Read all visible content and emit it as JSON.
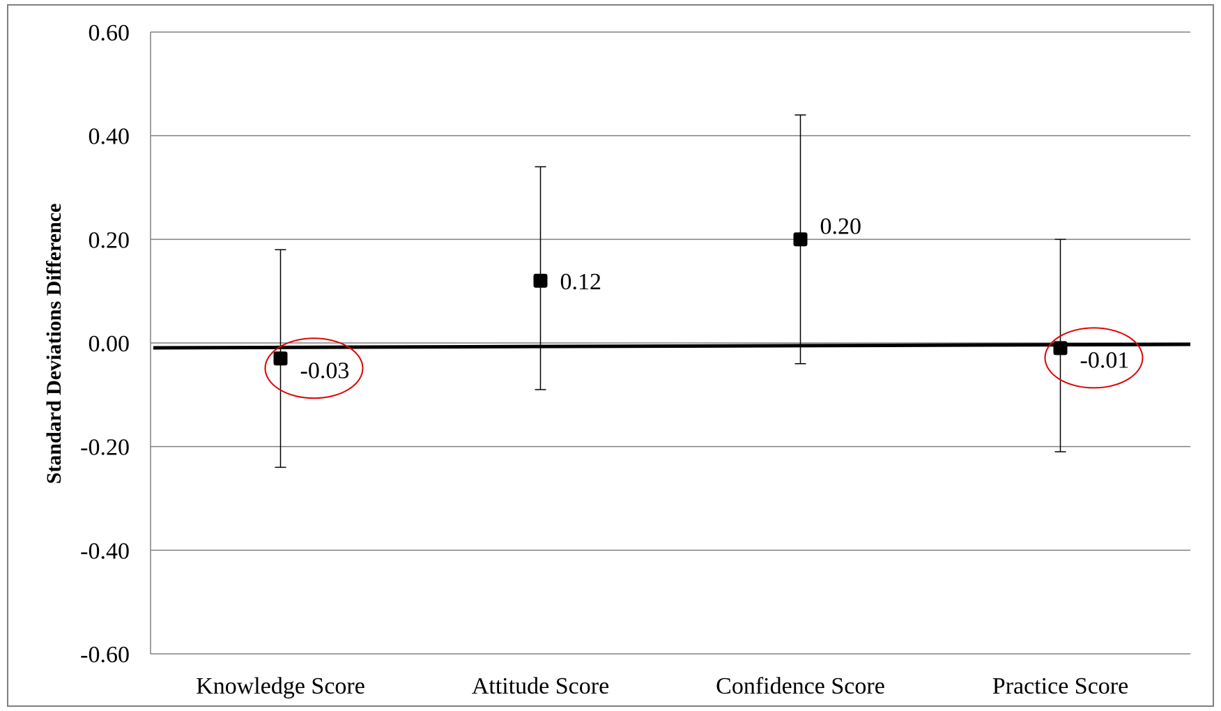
{
  "chart_data": {
    "type": "scatter",
    "title": "",
    "xlabel": "",
    "ylabel": "Standard Deviations Difference",
    "ylim": [
      -0.6,
      0.6
    ],
    "y_ticks": [
      "0.60",
      "0.40",
      "0.20",
      "0.00",
      "-0.20",
      "-0.40",
      "-0.60"
    ],
    "grid": "horizontal",
    "categories": [
      "Knowledge Score",
      "Attitude Score",
      "Confidence Score",
      "Practice Score"
    ],
    "values": [
      -0.03,
      0.12,
      0.2,
      -0.01
    ],
    "value_labels": [
      "-0.03",
      "0.12",
      "0.20",
      "-0.01"
    ],
    "error_upper": [
      0.18,
      0.34,
      0.44,
      0.2
    ],
    "error_lower": [
      -0.24,
      -0.09,
      -0.04,
      -0.21
    ],
    "highlighted": [
      "Knowledge Score",
      "Practice Score"
    ],
    "colors": {
      "marker": "#000000",
      "grid": "#808080",
      "zero_line": "#000000",
      "highlight": "#e00000"
    }
  }
}
